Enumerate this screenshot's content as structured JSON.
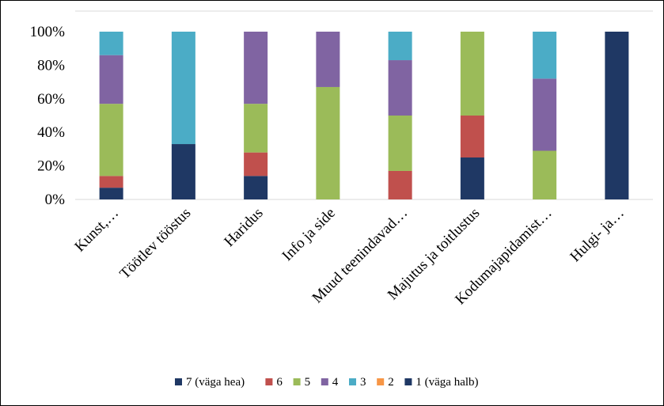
{
  "chart_data": {
    "type": "bar",
    "stacked": true,
    "normalized_percent": true,
    "title": "",
    "xlabel": "",
    "ylabel": "",
    "ylim": [
      0,
      100
    ],
    "y_ticks": [
      "0%",
      "20%",
      "40%",
      "60%",
      "80%",
      "100%"
    ],
    "grid": false,
    "legend_position": "bottom",
    "categories": [
      "Kunst,…",
      "Töötlev tööstus",
      "Haridus",
      "Info ja side",
      "Muud teenindavad…",
      "Majutus ja toitlustus",
      "Kodumajapidamist…",
      "Hulgi- ja…"
    ],
    "series": [
      {
        "name": "7 (väga hea)",
        "color": "#1f3864",
        "values": [
          7,
          33,
          14,
          0,
          0,
          25,
          0,
          100
        ]
      },
      {
        "name": "6",
        "color": "#c0504d",
        "values": [
          7,
          0,
          14,
          0,
          17,
          25,
          0,
          0
        ]
      },
      {
        "name": "5",
        "color": "#9bbb59",
        "values": [
          43,
          0,
          29,
          67,
          33,
          50,
          29,
          0
        ]
      },
      {
        "name": "4",
        "color": "#8064a2",
        "values": [
          29,
          0,
          43,
          33,
          33,
          0,
          43,
          0
        ]
      },
      {
        "name": "3",
        "color": "#4bacc6",
        "values": [
          14,
          67,
          0,
          0,
          17,
          0,
          28,
          0
        ]
      },
      {
        "name": "2",
        "color": "#f79646",
        "values": [
          0,
          0,
          0,
          0,
          0,
          0,
          0,
          0
        ]
      },
      {
        "name": "1 (väga halb)",
        "color": "#1f3864",
        "values": [
          0,
          0,
          0,
          0,
          0,
          0,
          0,
          0
        ]
      }
    ]
  }
}
